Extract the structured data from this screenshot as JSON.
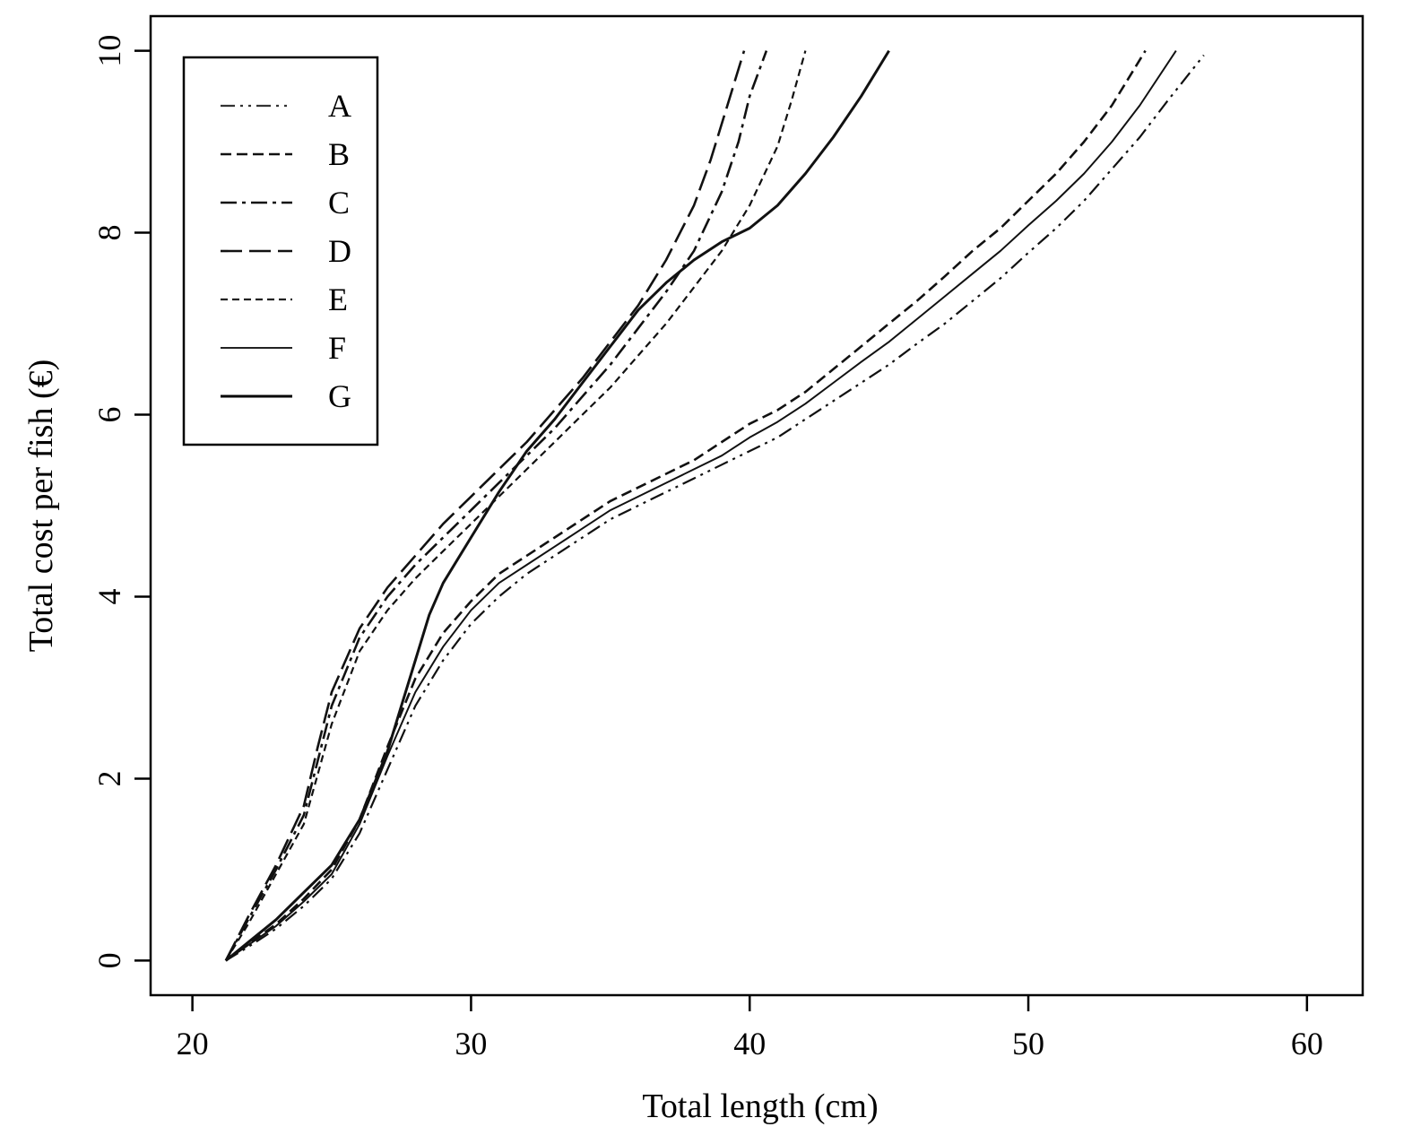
{
  "chart_data": {
    "type": "line",
    "title": "",
    "xlabel": "Total length (cm)",
    "ylabel": "Total cost per fish (€)",
    "xlim": [
      18.5,
      62.0
    ],
    "ylim": [
      -0.38,
      10.38
    ],
    "xticks": [
      20,
      30,
      40,
      50,
      60
    ],
    "yticks": [
      0,
      2,
      4,
      6,
      8,
      10
    ],
    "xtick_labels": [
      "20",
      "30",
      "40",
      "50",
      "60"
    ],
    "ytick_labels": [
      "0",
      "2",
      "4",
      "6",
      "8",
      "10"
    ],
    "grid": false,
    "legend_position": "top-left",
    "series": [
      {
        "name": "A",
        "line_style": "dash-dot-dot",
        "color": "#333333",
        "x": [
          21.2,
          22.0,
          23.0,
          24.0,
          25.0,
          26.0,
          27.0,
          28.0,
          29.0,
          30.0,
          31.0,
          32.0,
          33.0,
          34.0,
          35.0,
          36.0,
          37.0,
          38.0,
          39.0,
          40.0,
          41.0,
          42.0,
          43.0,
          44.0,
          45.0,
          46.0,
          47.0,
          48.0,
          49.0,
          50.0,
          51.0,
          52.0,
          53.0,
          54.0,
          55.0,
          56.3
        ],
        "y": [
          0.0,
          0.15,
          0.35,
          0.6,
          0.9,
          1.4,
          2.1,
          2.8,
          3.3,
          3.7,
          4.0,
          4.25,
          4.45,
          4.65,
          4.85,
          5.0,
          5.15,
          5.3,
          5.45,
          5.6,
          5.75,
          5.95,
          6.15,
          6.35,
          6.55,
          6.78,
          7.0,
          7.25,
          7.5,
          7.78,
          8.05,
          8.35,
          8.7,
          9.05,
          9.45,
          9.95
        ]
      },
      {
        "name": "B",
        "line_style": "dashed",
        "color": "#111111",
        "x": [
          21.2,
          22.0,
          23.0,
          24.0,
          25.0,
          26.0,
          27.0,
          28.0,
          29.0,
          30.0,
          31.0,
          32.0,
          33.0,
          34.0,
          35.0,
          36.0,
          37.0,
          38.0,
          39.0,
          40.0,
          41.0,
          42.0,
          43.0,
          44.0,
          45.0,
          46.0,
          47.0,
          48.0,
          49.0,
          50.0,
          51.0,
          52.0,
          53.0,
          54.2
        ],
        "y": [
          0.0,
          0.18,
          0.4,
          0.68,
          1.0,
          1.55,
          2.35,
          3.1,
          3.6,
          3.95,
          4.25,
          4.45,
          4.65,
          4.85,
          5.05,
          5.2,
          5.35,
          5.5,
          5.7,
          5.9,
          6.05,
          6.25,
          6.5,
          6.75,
          7.0,
          7.25,
          7.52,
          7.8,
          8.05,
          8.35,
          8.65,
          9.0,
          9.4,
          10.0
        ]
      },
      {
        "name": "C",
        "line_style": "dash-dot",
        "color": "#111111",
        "x": [
          21.2,
          22.0,
          23.0,
          24.0,
          24.5,
          25.0,
          26.0,
          27.0,
          28.0,
          29.0,
          30.0,
          31.0,
          32.0,
          33.0,
          34.0,
          35.0,
          36.0,
          37.0,
          38.0,
          39.0,
          39.6,
          40.0,
          40.6
        ],
        "y": [
          0.0,
          0.45,
          1.0,
          1.6,
          2.2,
          2.8,
          3.55,
          4.0,
          4.35,
          4.65,
          4.95,
          5.25,
          5.55,
          5.85,
          6.2,
          6.55,
          6.95,
          7.35,
          7.8,
          8.45,
          9.0,
          9.5,
          10.0
        ]
      },
      {
        "name": "D",
        "line_style": "long-dash",
        "color": "#111111",
        "x": [
          21.2,
          22.0,
          23.0,
          24.0,
          24.5,
          25.0,
          26.0,
          27.0,
          28.0,
          29.0,
          30.0,
          31.0,
          32.0,
          33.0,
          34.0,
          35.0,
          36.0,
          37.0,
          38.0,
          38.6,
          39.2,
          39.8
        ],
        "y": [
          0.0,
          0.48,
          1.05,
          1.7,
          2.35,
          2.95,
          3.65,
          4.1,
          4.45,
          4.8,
          5.1,
          5.4,
          5.7,
          6.05,
          6.4,
          6.8,
          7.2,
          7.7,
          8.3,
          8.8,
          9.4,
          10.0
        ]
      },
      {
        "name": "E",
        "line_style": "short-dash",
        "color": "#222222",
        "x": [
          21.2,
          22.0,
          23.0,
          24.0,
          24.5,
          25.0,
          26.0,
          27.0,
          28.0,
          29.0,
          30.0,
          31.0,
          32.0,
          33.0,
          34.0,
          35.0,
          36.0,
          37.0,
          38.0,
          39.0,
          40.0,
          41.0,
          41.5,
          42.0
        ],
        "y": [
          0.0,
          0.4,
          0.95,
          1.5,
          2.05,
          2.6,
          3.4,
          3.85,
          4.2,
          4.5,
          4.8,
          5.1,
          5.4,
          5.7,
          6.0,
          6.3,
          6.65,
          7.0,
          7.4,
          7.8,
          8.3,
          8.95,
          9.45,
          10.0
        ]
      },
      {
        "name": "F",
        "line_style": "solid-thin",
        "color": "#222222",
        "x": [
          21.2,
          22.0,
          23.0,
          24.0,
          25.0,
          26.0,
          27.0,
          28.0,
          29.0,
          30.0,
          31.0,
          32.0,
          33.0,
          34.0,
          35.0,
          36.0,
          37.0,
          38.0,
          39.0,
          40.0,
          41.0,
          42.0,
          43.0,
          44.0,
          45.0,
          46.0,
          47.0,
          48.0,
          49.0,
          50.0,
          51.0,
          52.0,
          53.0,
          54.0,
          55.3
        ],
        "y": [
          0.0,
          0.17,
          0.38,
          0.65,
          0.95,
          1.5,
          2.25,
          2.95,
          3.45,
          3.85,
          4.15,
          4.35,
          4.55,
          4.75,
          4.95,
          5.1,
          5.25,
          5.4,
          5.55,
          5.75,
          5.92,
          6.12,
          6.35,
          6.58,
          6.8,
          7.05,
          7.3,
          7.55,
          7.8,
          8.08,
          8.35,
          8.65,
          9.0,
          9.4,
          10.0
        ]
      },
      {
        "name": "G",
        "line_style": "solid-thick",
        "color": "#000000",
        "x": [
          21.2,
          22.0,
          23.0,
          24.0,
          25.0,
          26.0,
          27.0,
          27.5,
          28.0,
          28.5,
          29.0,
          30.0,
          31.0,
          32.0,
          33.0,
          34.0,
          35.0,
          36.0,
          37.0,
          38.0,
          39.0,
          40.0,
          41.0,
          42.0,
          43.0,
          44.0,
          45.0
        ],
        "y": [
          0.0,
          0.2,
          0.45,
          0.75,
          1.05,
          1.55,
          2.3,
          2.8,
          3.3,
          3.8,
          4.15,
          4.65,
          5.15,
          5.6,
          5.95,
          6.35,
          6.75,
          7.15,
          7.45,
          7.7,
          7.9,
          8.05,
          8.3,
          8.65,
          9.05,
          9.5,
          10.0
        ]
      }
    ]
  }
}
